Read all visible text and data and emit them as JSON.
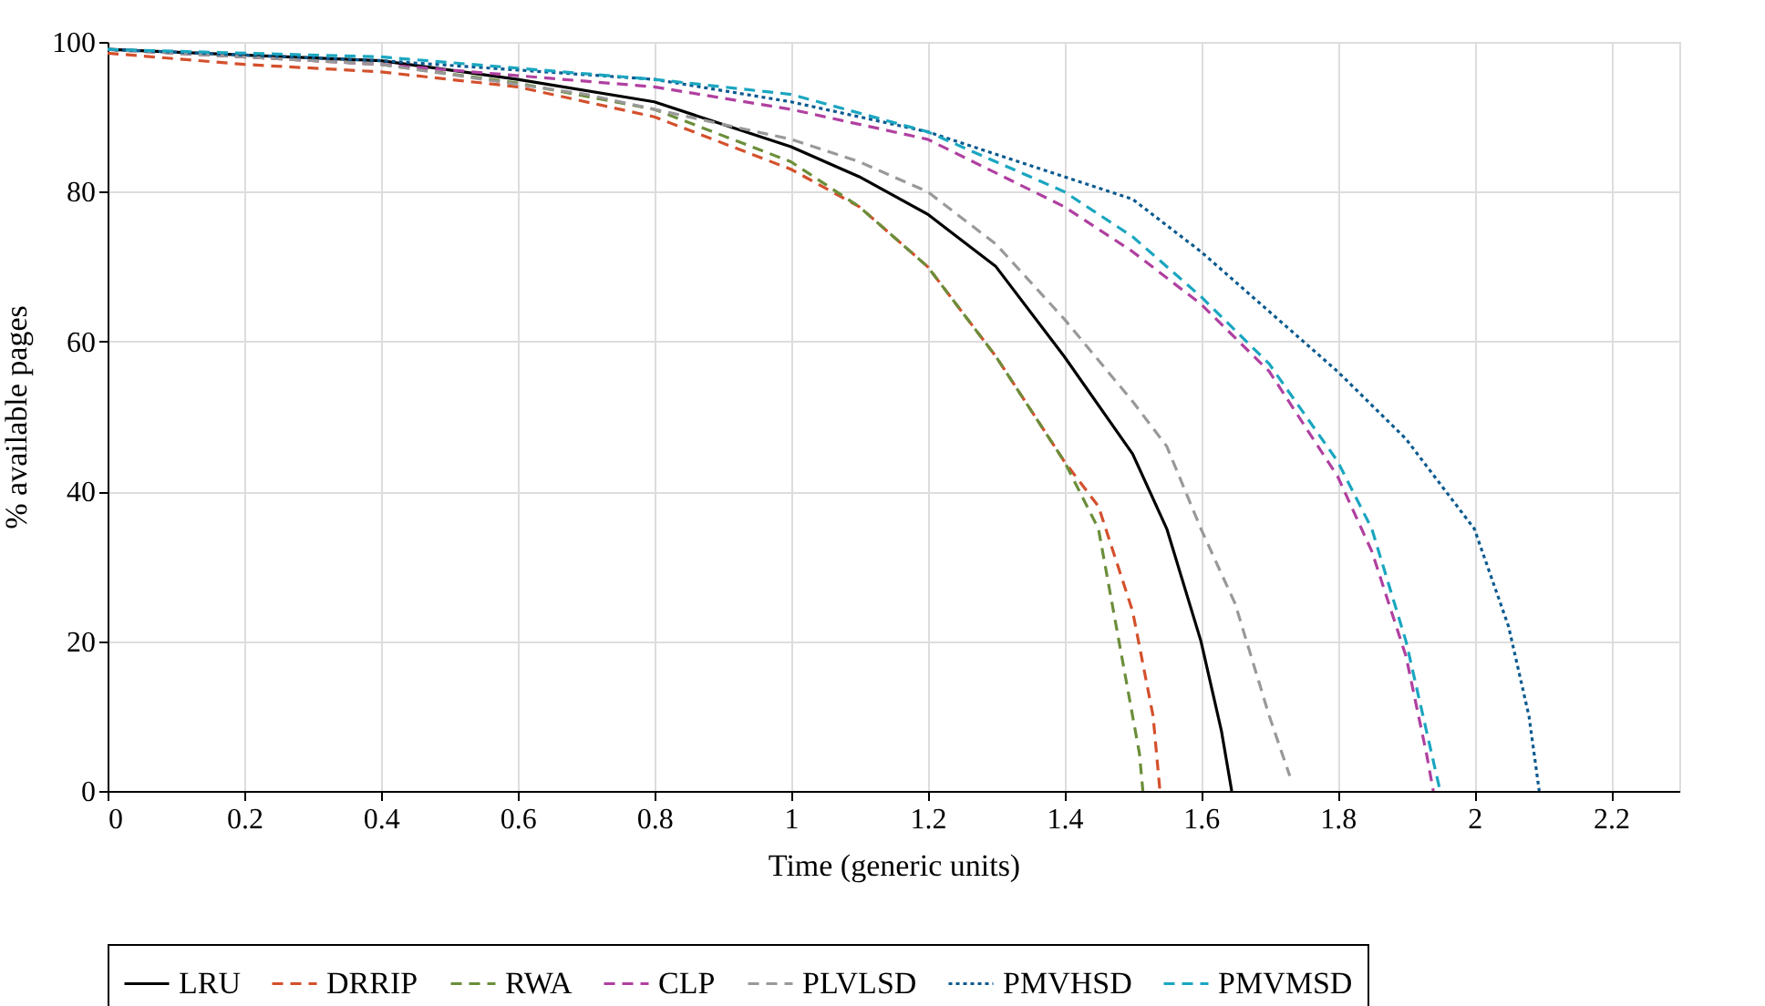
{
  "chart_data": {
    "type": "line",
    "xlabel": "Time (generic units)",
    "ylabel": "% available pages",
    "xlim": [
      0,
      2.3
    ],
    "xticks": [
      0,
      0.2,
      0.4,
      0.6,
      0.8,
      1,
      1.2,
      1.4,
      1.6,
      1.8,
      2,
      2.2
    ],
    "ylim": [
      0,
      100
    ],
    "yticks": [
      0,
      20,
      40,
      60,
      80,
      100
    ],
    "grid": true,
    "legend": "bottom",
    "marker": "none",
    "series": [
      {
        "name": "LRU",
        "color": "#000000",
        "line_style": "solid",
        "x": [
          0,
          0.4,
          0.6,
          0.8,
          1,
          1.1,
          1.2,
          1.3,
          1.4,
          1.5,
          1.55,
          1.6,
          1.63,
          1.645
        ],
        "values": [
          99,
          97.5,
          95,
          92,
          86,
          82,
          77,
          70,
          58,
          45,
          35,
          20,
          8,
          0
        ]
      },
      {
        "name": "DRRIP",
        "color": "#d4502c",
        "line_style": "dashed",
        "x": [
          0,
          0.2,
          0.4,
          0.6,
          0.8,
          1,
          1.1,
          1.2,
          1.3,
          1.4,
          1.45,
          1.5,
          1.53,
          1.54
        ],
        "values": [
          98.5,
          97,
          96,
          94,
          90,
          83,
          78,
          70,
          58,
          44,
          38,
          24,
          10,
          0
        ]
      },
      {
        "name": "RWA",
        "color": "#6b8e3a",
        "line_style": "dashed",
        "x": [
          0,
          0.4,
          0.6,
          0.8,
          1,
          1.1,
          1.2,
          1.3,
          1.4,
          1.45,
          1.48,
          1.51,
          1.515
        ],
        "values": [
          99,
          97,
          94.5,
          91,
          84,
          78,
          70,
          58,
          44,
          35,
          20,
          5,
          0
        ]
      },
      {
        "name": "CLP",
        "color": "#b040a0",
        "line_style": "dashed",
        "x": [
          0,
          0.4,
          0.8,
          1,
          1.2,
          1.4,
          1.5,
          1.6,
          1.7,
          1.8,
          1.85,
          1.9,
          1.93,
          1.94
        ],
        "values": [
          99,
          97,
          94,
          91,
          87,
          78,
          72,
          65,
          56,
          42,
          32,
          18,
          5,
          0
        ]
      },
      {
        "name": "PLVLSD",
        "color": "#999999",
        "line_style": "dashed",
        "x": [
          0,
          0.4,
          0.7,
          0.9,
          1,
          1.1,
          1.2,
          1.3,
          1.4,
          1.5,
          1.55,
          1.6,
          1.65,
          1.7,
          1.73
        ],
        "values": [
          99,
          97,
          93,
          89,
          87,
          84,
          80,
          73,
          63,
          52,
          46,
          35,
          25,
          10,
          2
        ]
      },
      {
        "name": "PMVHSD",
        "color": "#0b5a8f",
        "line_style": "dotted",
        "x": [
          0,
          0.4,
          0.8,
          1,
          1.2,
          1.4,
          1.5,
          1.6,
          1.7,
          1.8,
          1.9,
          2,
          2.05,
          2.08,
          2.095
        ],
        "values": [
          99,
          97.5,
          95,
          92,
          88,
          82,
          79,
          72,
          64,
          56,
          47,
          35,
          22,
          10,
          0
        ]
      },
      {
        "name": "PMVMSD",
        "color": "#1aa6c0",
        "line_style": "dashed",
        "x": [
          0,
          0.4,
          0.6,
          0.8,
          1,
          1.2,
          1.4,
          1.5,
          1.6,
          1.7,
          1.8,
          1.85,
          1.9,
          1.93,
          1.95
        ],
        "values": [
          99,
          98,
          96.5,
          95,
          93,
          88,
          80,
          74,
          66,
          57,
          44,
          35,
          20,
          8,
          0
        ]
      }
    ]
  }
}
